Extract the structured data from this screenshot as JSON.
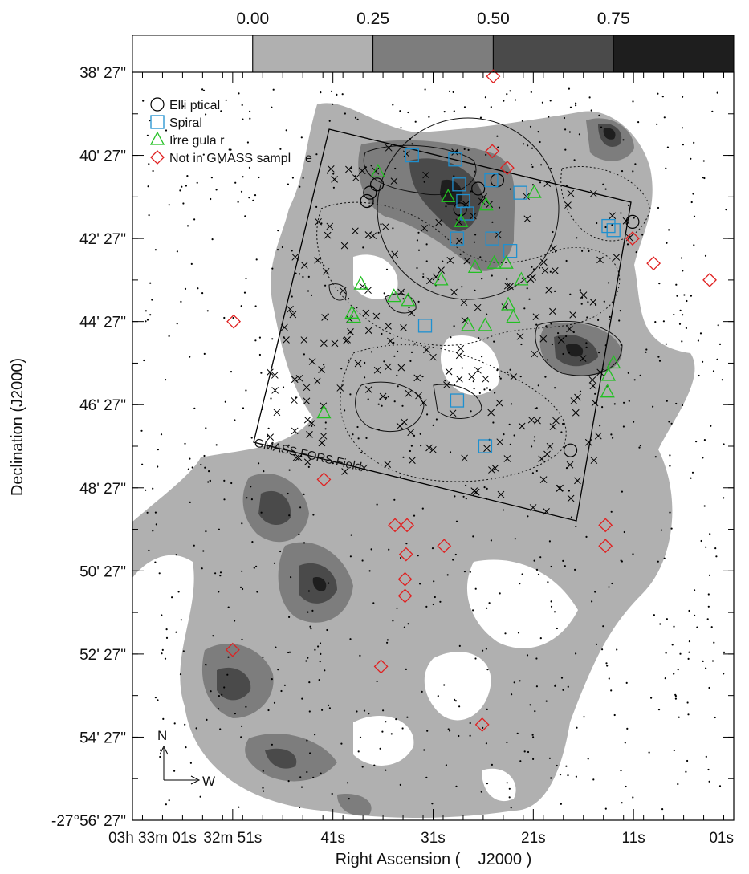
{
  "chart_data": {
    "type": "scatter",
    "title": "",
    "xlabel": "Right Ascension (    J2000 )",
    "ylabel": "Declination (J2000)",
    "x_ticks": [
      "03h 33m 01s",
      "32m 51s",
      "41s",
      "31s",
      "21s",
      "11s",
      "01s"
    ],
    "y_ticks": [
      "38' 27\"",
      "40' 27\"",
      "42' 27\"",
      "44' 27\"",
      "46' 27\"",
      "48' 27\"",
      "50' 27\"",
      "52' 27\"",
      "54' 27\"",
      "-27°56' 27\""
    ],
    "x_tick_values_s": [
      61,
      51,
      41,
      31,
      21,
      11,
      1
    ],
    "y_tick_values_arcmin": [
      38,
      40,
      42,
      44,
      46,
      48,
      50,
      52,
      54,
      56
    ],
    "xlim_s": [
      61,
      1
    ],
    "ylim_arcmin": [
      56,
      38
    ],
    "colorbar": {
      "ticks": [
        "0.00",
        "0.25",
        "0.50",
        "0.75"
      ],
      "levels": [
        0.0,
        0.25,
        0.5,
        0.75,
        1.0
      ],
      "colors": [
        "#ffffff",
        "#b0b0b0",
        "#7d7d7d",
        "#4a4a4a",
        "#1e1e1e"
      ]
    },
    "field_label": "GMASS FORS Field",
    "legend": [
      {
        "label": "Elli ptical",
        "marker": "circle",
        "color": "#000000"
      },
      {
        "label": "Spiral",
        "marker": "square",
        "color": "#1e90d0"
      },
      {
        "label": "Irre gula r",
        "marker": "triangle",
        "color": "#22c022"
      },
      {
        "label": "Not in GMASS sampl    e",
        "marker": "diamond",
        "color": "#e02020"
      }
    ],
    "compass": {
      "north": "N",
      "west": "W"
    },
    "series": [
      {
        "name": "Elli ptical",
        "marker": "circle",
        "points": [
          [
            37.3,
            40.9
          ],
          [
            37.6,
            41.1
          ],
          [
            36.6,
            40.7
          ],
          [
            28.3,
            41.3
          ],
          [
            26.5,
            40.8
          ],
          [
            24.6,
            40.6
          ],
          [
            11.1,
            41.6
          ],
          [
            17.3,
            47.1
          ]
        ]
      },
      {
        "name": "Spiral",
        "marker": "square",
        "points": [
          [
            33.1,
            40.0
          ],
          [
            28.8,
            40.1
          ],
          [
            28.4,
            40.7
          ],
          [
            28.0,
            41.1
          ],
          [
            25.2,
            40.6
          ],
          [
            27.6,
            41.4
          ],
          [
            28.6,
            42.0
          ],
          [
            25.1,
            42.0
          ],
          [
            23.3,
            42.3
          ],
          [
            22.3,
            40.9
          ],
          [
            13.5,
            41.7
          ],
          [
            13.0,
            41.8
          ],
          [
            31.8,
            44.1
          ],
          [
            28.6,
            45.9
          ],
          [
            25.8,
            47.0
          ]
        ]
      },
      {
        "name": "Irre gula r",
        "marker": "triangle",
        "points": [
          [
            36.5,
            40.4
          ],
          [
            29.5,
            41.0
          ],
          [
            28.2,
            41.6
          ],
          [
            25.7,
            41.2
          ],
          [
            20.9,
            40.9
          ],
          [
            26.8,
            42.7
          ],
          [
            24.9,
            42.6
          ],
          [
            23.7,
            42.6
          ],
          [
            22.2,
            43.0
          ],
          [
            38.2,
            43.1
          ],
          [
            39.1,
            43.8
          ],
          [
            38.9,
            43.9
          ],
          [
            34.9,
            43.4
          ],
          [
            33.5,
            43.5
          ],
          [
            30.2,
            43.0
          ],
          [
            27.5,
            44.1
          ],
          [
            25.8,
            44.1
          ],
          [
            23.5,
            43.6
          ],
          [
            23.0,
            43.9
          ],
          [
            13.0,
            45.0
          ],
          [
            13.5,
            45.3
          ],
          [
            13.6,
            45.7
          ],
          [
            41.9,
            46.2
          ]
        ]
      },
      {
        "name": "Not in GMASS sampl    e",
        "marker": "diamond",
        "points": [
          [
            25.0,
            38.1
          ],
          [
            25.1,
            39.9
          ],
          [
            23.6,
            40.3
          ],
          [
            11.1,
            42.0
          ],
          [
            9.0,
            42.6
          ],
          [
            3.4,
            43.0
          ],
          [
            50.9,
            44.0
          ],
          [
            41.9,
            47.8
          ],
          [
            34.8,
            48.9
          ],
          [
            33.6,
            48.9
          ],
          [
            33.7,
            49.6
          ],
          [
            29.9,
            49.4
          ],
          [
            33.8,
            50.2
          ],
          [
            33.8,
            50.6
          ],
          [
            13.8,
            48.9
          ],
          [
            13.8,
            49.4
          ],
          [
            51.0,
            51.9
          ],
          [
            36.2,
            52.3
          ],
          [
            26.1,
            53.7
          ]
        ]
      }
    ]
  }
}
